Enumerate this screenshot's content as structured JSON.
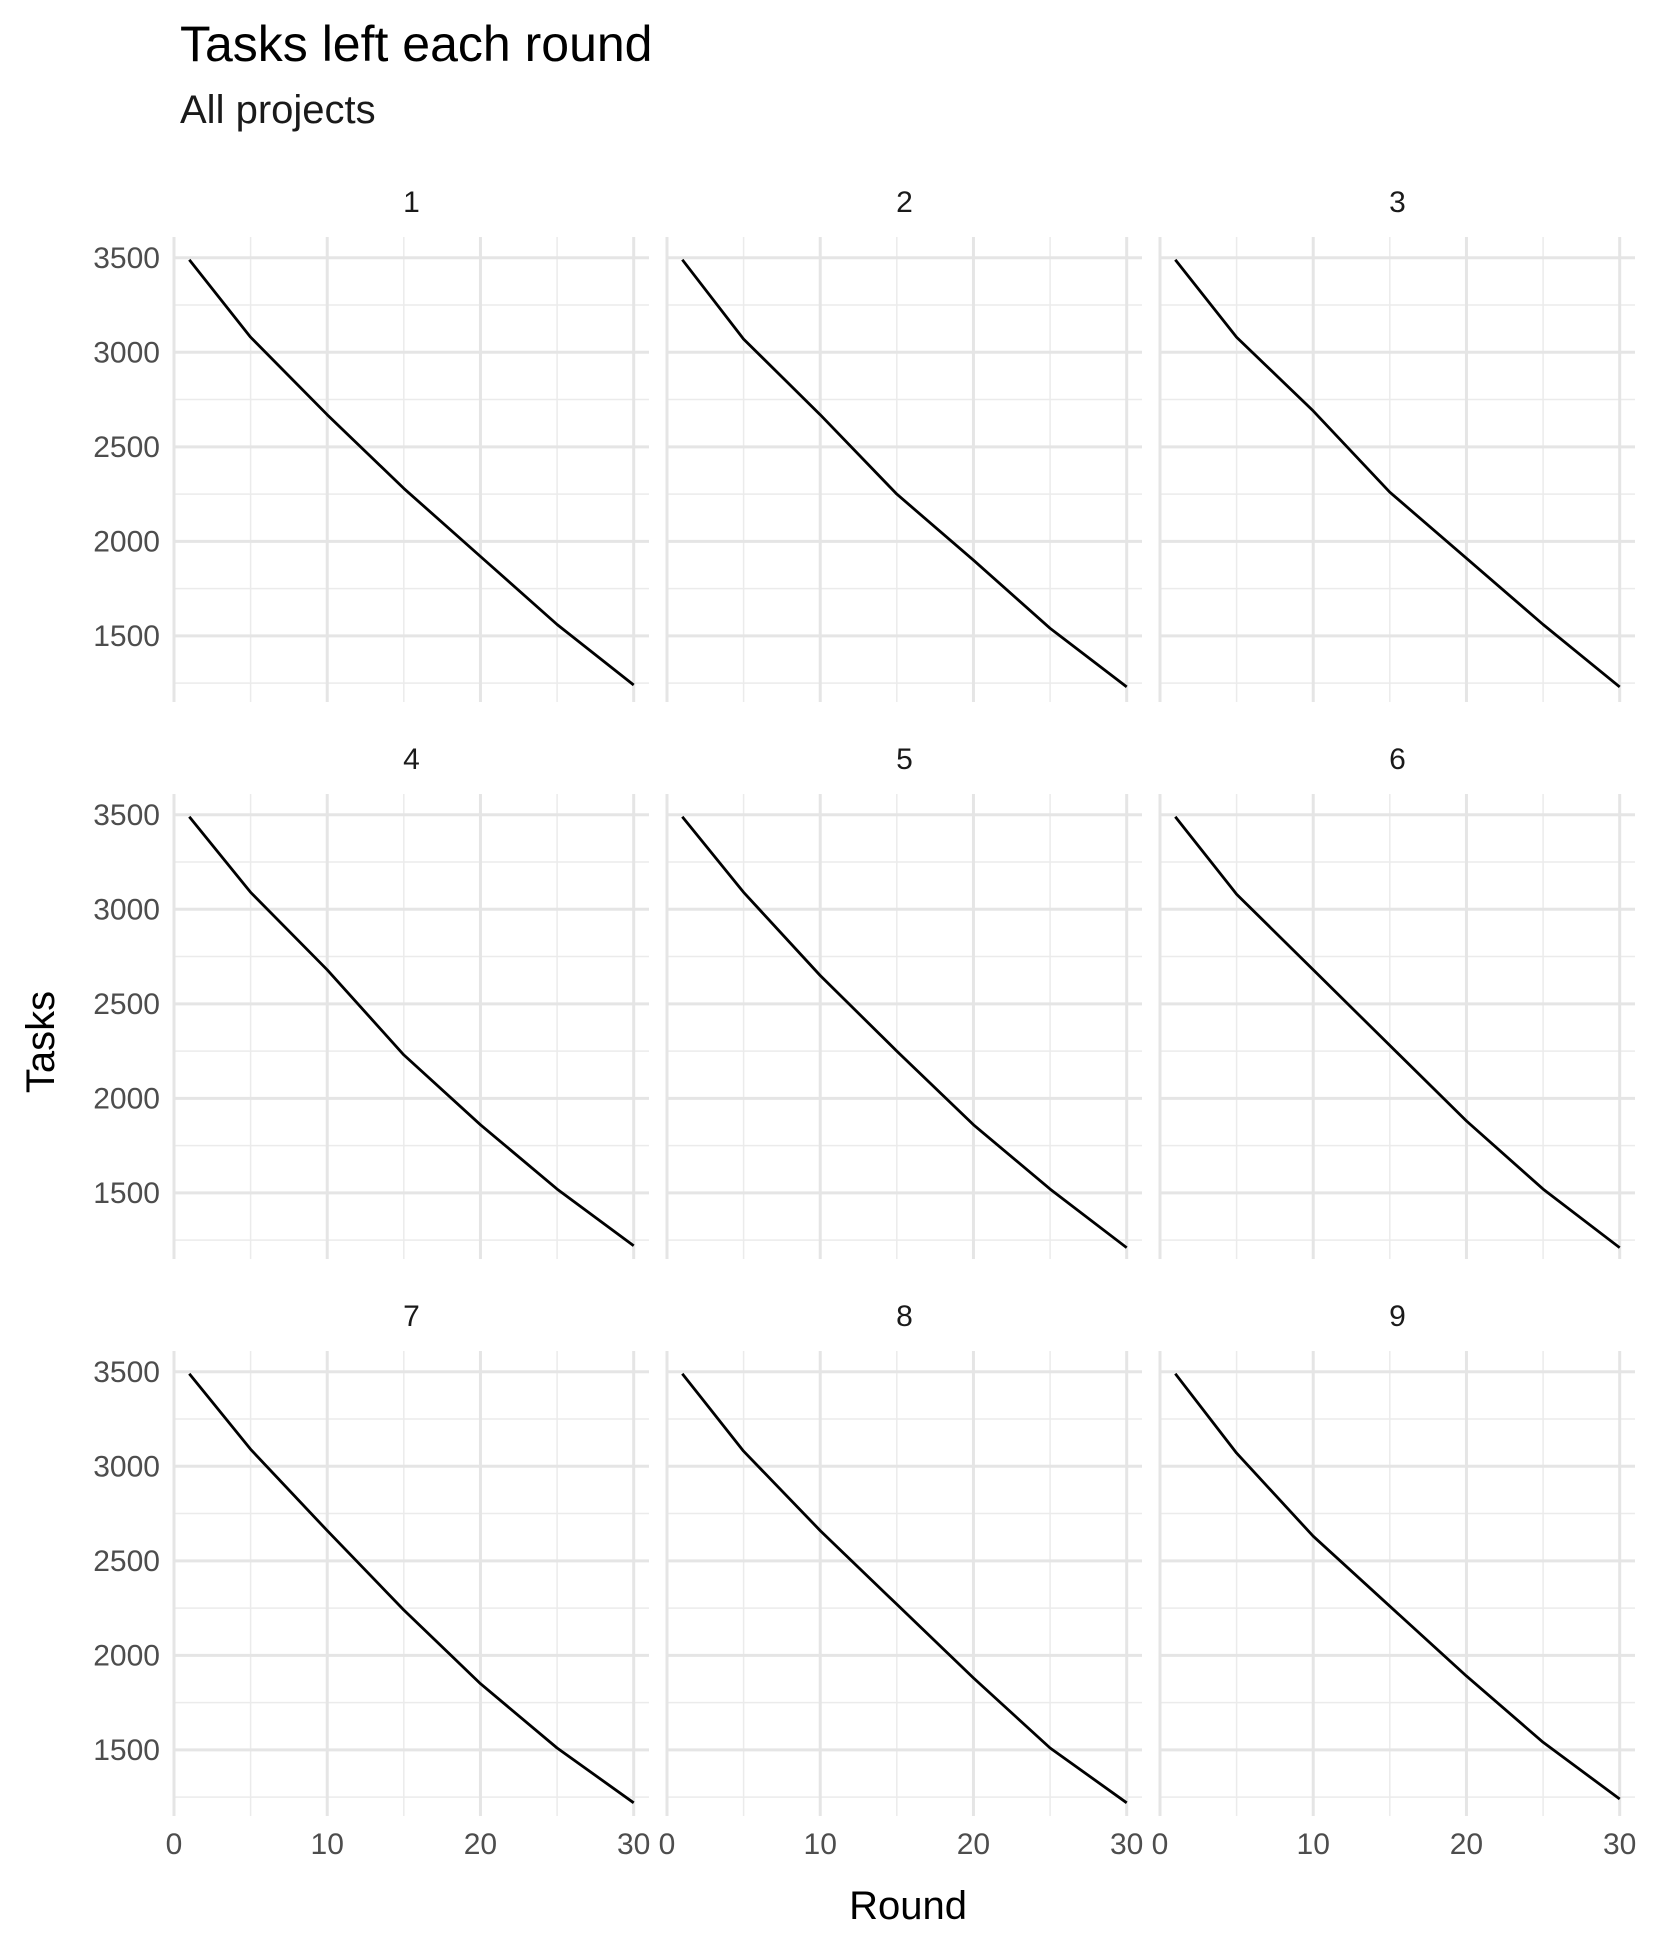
{
  "chart_data": {
    "type": "line",
    "title": "Tasks left each round",
    "subtitle": "All projects",
    "xlabel": "Round",
    "ylabel": "Tasks",
    "xlim": [
      0,
      31
    ],
    "ylim": [
      1150,
      3610
    ],
    "x_ticks": [
      0,
      10,
      20,
      30
    ],
    "y_ticks": [
      1500,
      2000,
      2500,
      3000,
      3500
    ],
    "grid": true,
    "layout": "3x3 facets",
    "x": [
      1,
      5,
      10,
      15,
      20,
      25,
      30
    ],
    "panels": [
      {
        "label": "1",
        "values": [
          3490,
          3080,
          2670,
          2280,
          1920,
          1560,
          1240
        ]
      },
      {
        "label": "2",
        "values": [
          3490,
          3070,
          2670,
          2250,
          1900,
          1540,
          1230
        ]
      },
      {
        "label": "3",
        "values": [
          3490,
          3080,
          2690,
          2260,
          1910,
          1560,
          1230
        ]
      },
      {
        "label": "4",
        "values": [
          3490,
          3090,
          2680,
          2230,
          1860,
          1520,
          1220
        ]
      },
      {
        "label": "5",
        "values": [
          3490,
          3090,
          2650,
          2250,
          1860,
          1520,
          1210
        ]
      },
      {
        "label": "6",
        "values": [
          3490,
          3080,
          2680,
          2280,
          1880,
          1520,
          1210
        ]
      },
      {
        "label": "7",
        "values": [
          3490,
          3090,
          2660,
          2240,
          1850,
          1510,
          1220
        ]
      },
      {
        "label": "8",
        "values": [
          3490,
          3080,
          2660,
          2270,
          1880,
          1510,
          1220
        ]
      },
      {
        "label": "9",
        "values": [
          3490,
          3070,
          2630,
          2260,
          1890,
          1540,
          1240
        ]
      }
    ]
  }
}
